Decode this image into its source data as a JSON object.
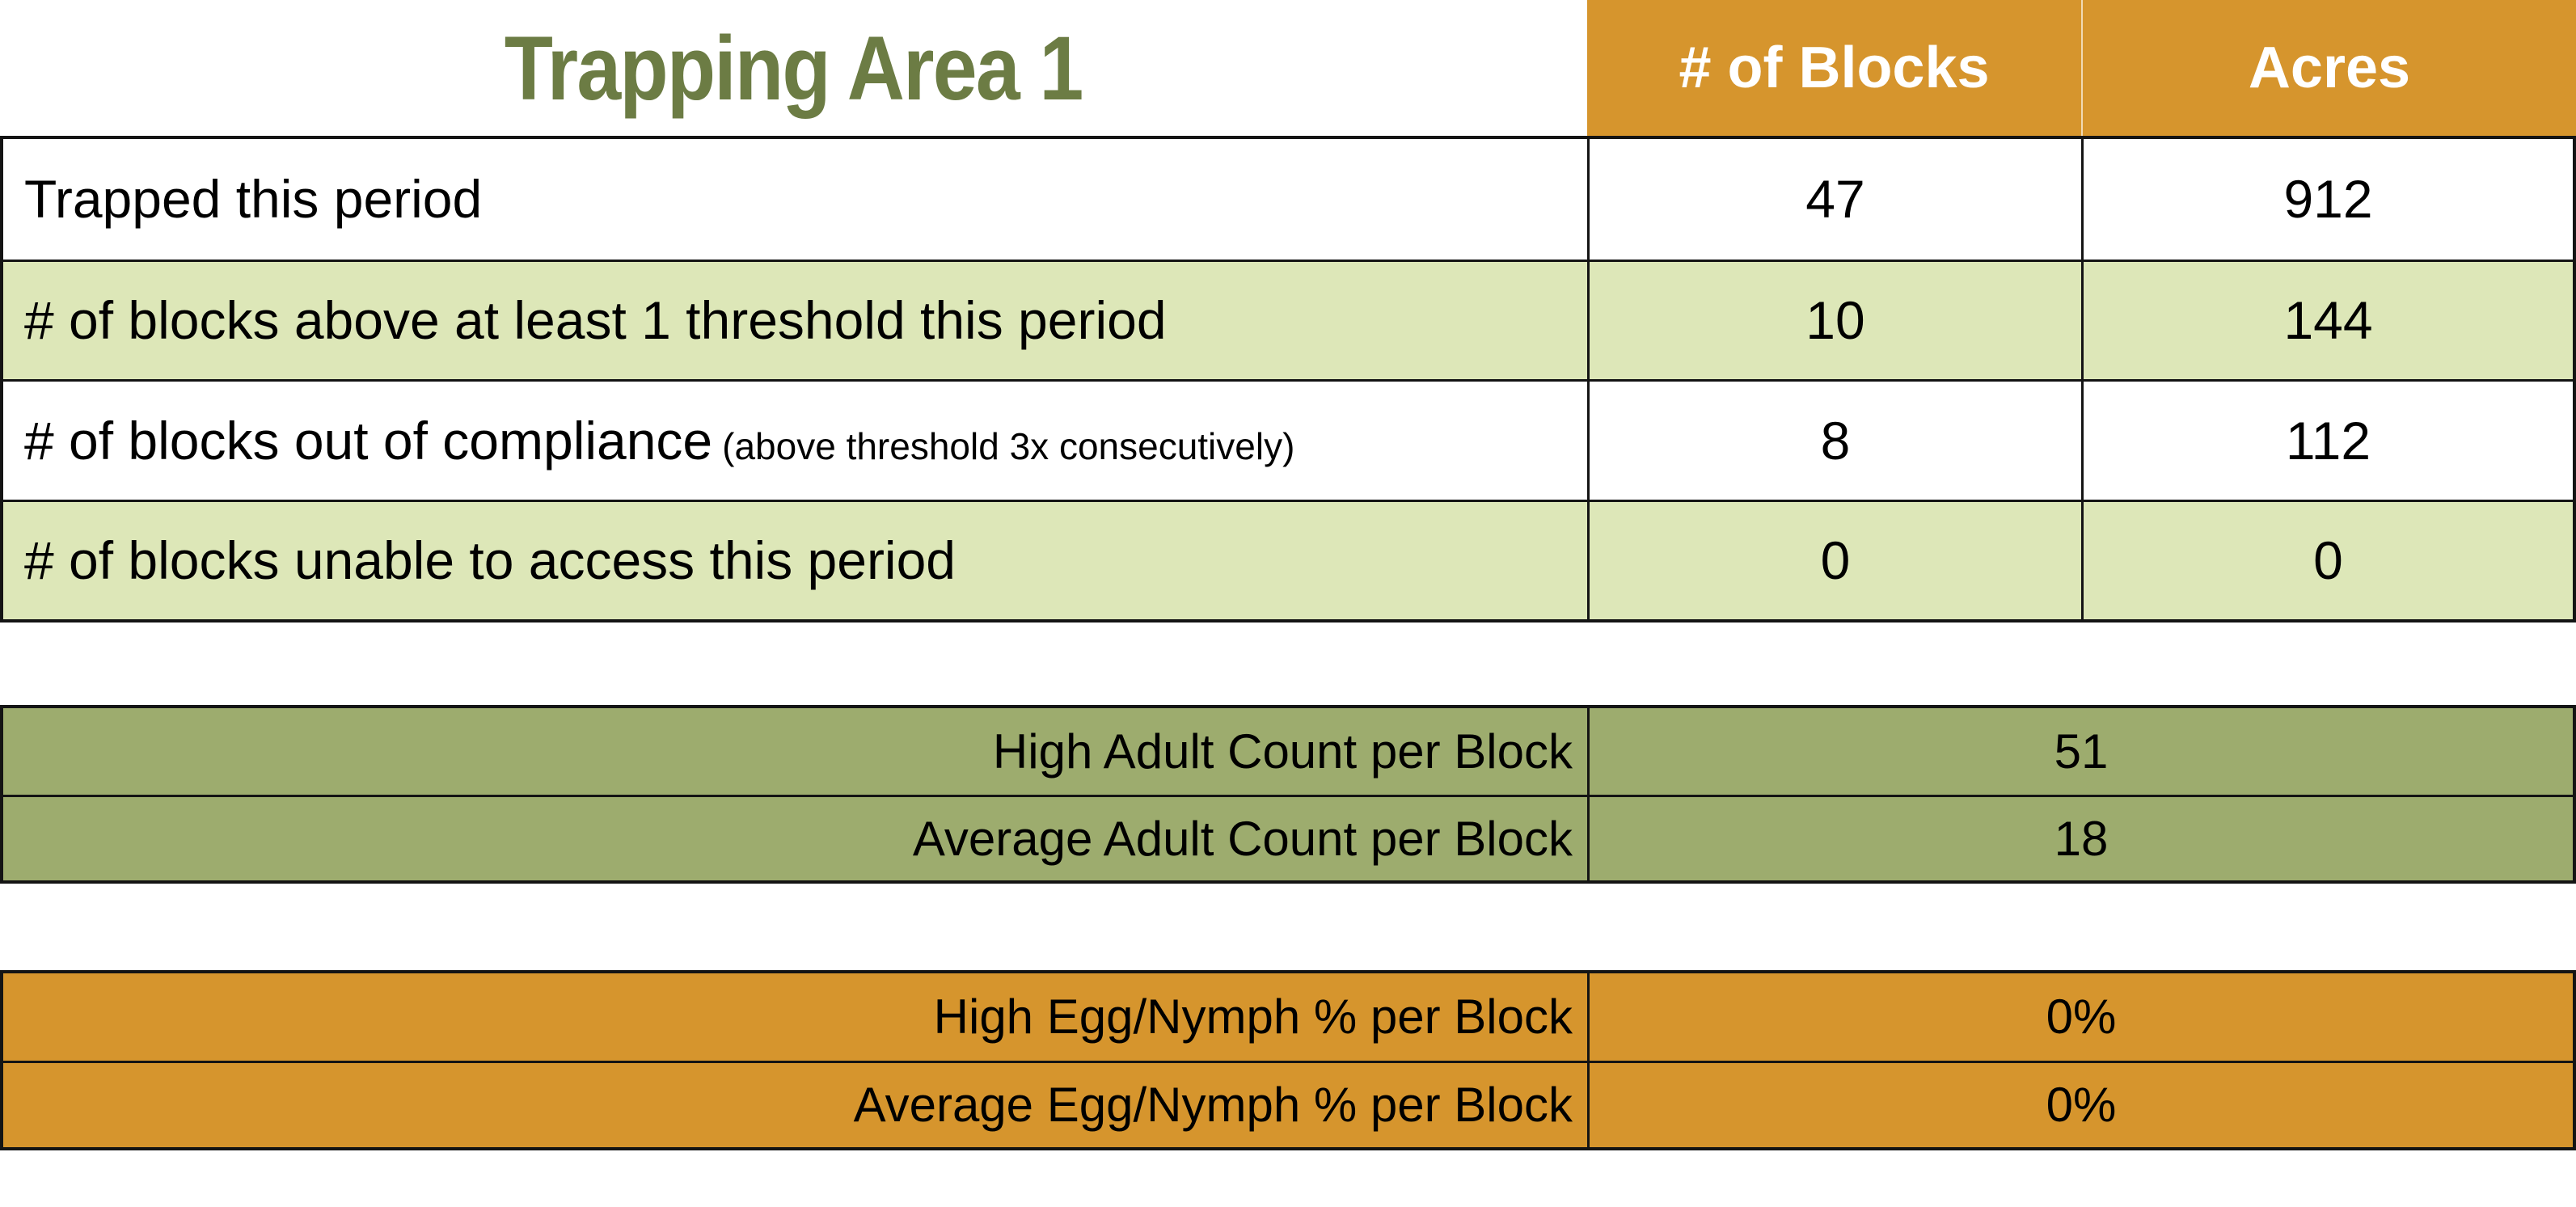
{
  "title": "Trapping Area 1",
  "colors": {
    "title-green": "#6C7C44",
    "header-orange": "#D6952D",
    "light-green": "#DDE7B8",
    "olive-green": "#9DAC6E",
    "border-color": "#141414"
  },
  "table1": {
    "headers": [
      "# of Blocks",
      "Acres"
    ],
    "rows": [
      {
        "label": "Trapped this period",
        "note": "",
        "blocks": "47",
        "acres": "912"
      },
      {
        "label": "# of blocks above at least 1 threshold this period",
        "note": "",
        "blocks": "10",
        "acres": "144"
      },
      {
        "label": "# of blocks out of compliance",
        "note": "(above threshold 3x consecutively)",
        "blocks": "8",
        "acres": "112"
      },
      {
        "label": "# of blocks unable to access this period",
        "note": "",
        "blocks": "0",
        "acres": "0"
      }
    ]
  },
  "adult_table": {
    "rows": [
      {
        "label": "High Adult Count per Block",
        "value": "51"
      },
      {
        "label": "Average Adult Count per Block",
        "value": "18"
      }
    ]
  },
  "egg_table": {
    "rows": [
      {
        "label": "High Egg/Nymph % per Block",
        "value": "0%"
      },
      {
        "label": "Average Egg/Nymph % per Block",
        "value": "0%"
      }
    ]
  }
}
